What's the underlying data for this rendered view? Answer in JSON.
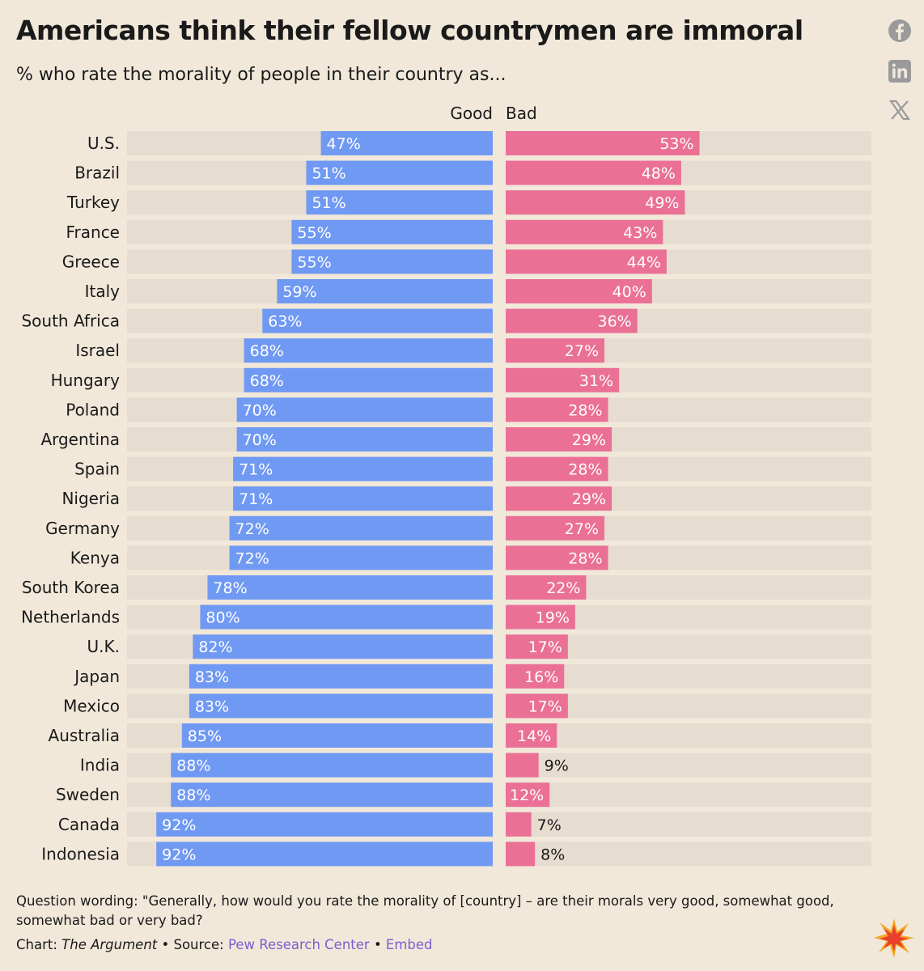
{
  "header": {
    "title": "Americans think their fellow countrymen are immoral",
    "subtitle": "% who rate the morality of people in their country as..."
  },
  "share": {
    "icons": [
      "facebook-icon",
      "linkedin-icon",
      "x-icon"
    ]
  },
  "chart_data": {
    "type": "bar",
    "orientation": "horizontal-diverging",
    "categories": [
      "U.S.",
      "Brazil",
      "Turkey",
      "France",
      "Greece",
      "Italy",
      "South Africa",
      "Israel",
      "Hungary",
      "Poland",
      "Argentina",
      "Spain",
      "Nigeria",
      "Germany",
      "Kenya",
      "South Korea",
      "Netherlands",
      "U.K.",
      "Japan",
      "Mexico",
      "Australia",
      "India",
      "Sweden",
      "Canada",
      "Indonesia"
    ],
    "series": [
      {
        "name": "Good",
        "color": "#7099f3",
        "values": [
          47,
          51,
          51,
          55,
          55,
          59,
          63,
          68,
          68,
          70,
          70,
          71,
          71,
          72,
          72,
          78,
          80,
          82,
          83,
          83,
          85,
          88,
          88,
          92,
          92
        ]
      },
      {
        "name": "Bad",
        "color": "#ea7096",
        "values": [
          53,
          48,
          49,
          43,
          44,
          40,
          36,
          27,
          31,
          28,
          29,
          28,
          29,
          27,
          28,
          22,
          19,
          17,
          16,
          17,
          14,
          9,
          12,
          7,
          8
        ]
      }
    ],
    "value_suffix": "%",
    "xlim": [
      0,
      100
    ],
    "track_color": "#e6ddd0"
  },
  "footer": {
    "question": "Question wording: \"Generally, how would you rate the morality of [country] – are their morals very good, somewhat good, somewhat bad or very bad?",
    "chart_label": "Chart:",
    "chart_source": "The Argument",
    "separator": "•",
    "source_label": "Source:",
    "source_link": "Pew Research Center",
    "embed_link": "Embed"
  }
}
